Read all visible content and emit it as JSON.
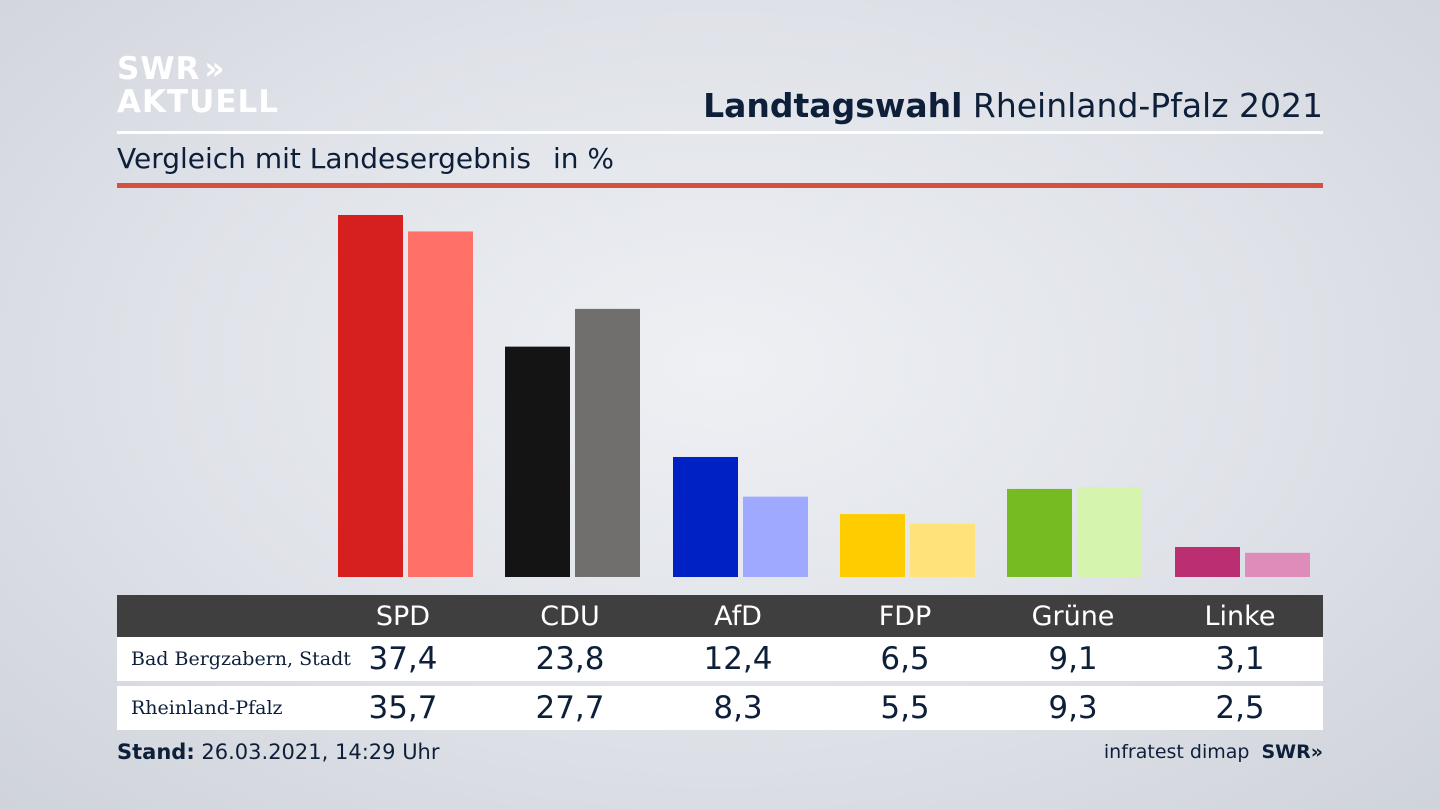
{
  "logo": {
    "line1": "SWR",
    "chevrons": "»",
    "line2": "AKTUELL"
  },
  "header": {
    "title_bold": "Landtagswahl",
    "title_rest": "Rheinland-Pfalz 2021"
  },
  "subtitle": {
    "text": "Vergleich mit Landesergebnis",
    "unit": "in %"
  },
  "chart_data": {
    "type": "bar",
    "categories": [
      "SPD",
      "CDU",
      "AfD",
      "FDP",
      "Grüne",
      "Linke"
    ],
    "series": [
      {
        "name": "Bad Bergzabern, Stadt",
        "values": [
          37.4,
          23.8,
          12.4,
          6.5,
          9.1,
          3.1
        ],
        "colors": [
          "#d61f1f",
          "#141414",
          "#0021c4",
          "#ffcc00",
          "#77bb22",
          "#bb2e72"
        ]
      },
      {
        "name": "Rheinland-Pfalz",
        "values": [
          35.7,
          27.7,
          8.3,
          5.5,
          9.3,
          2.5
        ],
        "colors": [
          "#ff7068",
          "#706f6d",
          "#9ea9ff",
          "#ffe27a",
          "#d5f5af",
          "#e08cba"
        ]
      }
    ],
    "ylim": [
      0,
      37.4
    ],
    "grid": false
  },
  "table": {
    "headers": [
      "SPD",
      "CDU",
      "AfD",
      "FDP",
      "Grüne",
      "Linke"
    ],
    "rows": [
      {
        "label": "Bad Bergzabern, Stadt",
        "values": [
          "37,4",
          "23,8",
          "12,4",
          "6,5",
          "9,1",
          "3,1"
        ]
      },
      {
        "label": "Rheinland-Pfalz",
        "values": [
          "35,7",
          "27,7",
          "8,3",
          "5,5",
          "9,3",
          "2,5"
        ]
      }
    ]
  },
  "footer": {
    "stand_label": "Stand:",
    "stand_value": "26.03.2021, 14:29 Uhr",
    "source": "infratest dimap",
    "brand": "SWR»"
  }
}
